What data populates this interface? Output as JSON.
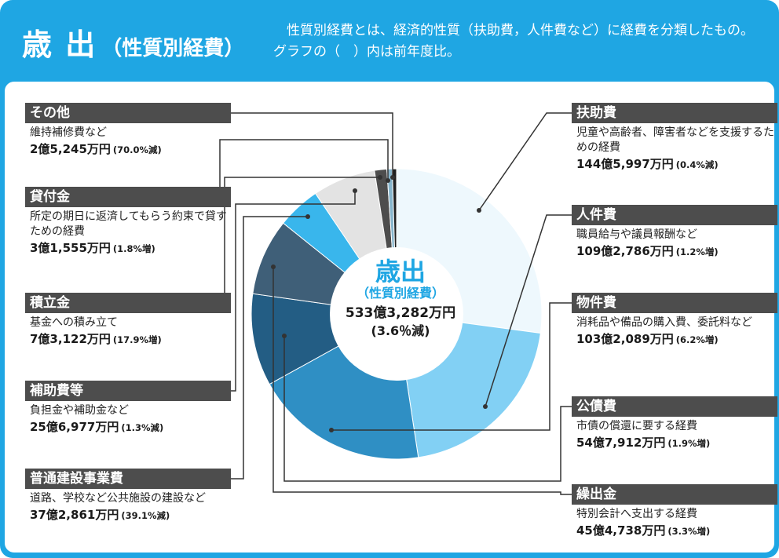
{
  "header": {
    "title": "歳 出",
    "subtitle": "（性質別経費）",
    "description": "性質別経費とは、経済的性質（扶助費，人件費など）に経費を分類したもの。グラフの（　）内は前年度比。"
  },
  "colors": {
    "brand": "#1fa6e3",
    "label_bar": "#4d4d4d",
    "leader_line": "#333333"
  },
  "center": {
    "title": "歳出",
    "subtitle": "（性質別経費）",
    "total": "533億3,282万円",
    "change": "(3.6％減)"
  },
  "chart_data": {
    "type": "pie",
    "unit": "万円",
    "categories": [
      "扶助費",
      "人件費",
      "物件費",
      "公債費",
      "繰出金",
      "補助費等",
      "普通建設事業費",
      "積立金",
      "貸付金",
      "その他"
    ],
    "values": [
      1445997,
      1092786,
      1032089,
      547912,
      454738,
      256977,
      372861,
      73122,
      31555,
      25245
    ],
    "colors": [
      "#eef8fd",
      "#82d0f4",
      "#2f8fc4",
      "#235d84",
      "#3f5f78",
      "#39b6ec",
      "#e3e3e3",
      "#4d4d4d",
      "#86b5cc",
      "#1f1f1f"
    ],
    "items": [
      {
        "name": "扶助費",
        "desc": "児童や高齢者、障害者などを支援するための経費",
        "amount": "144億5,997万円",
        "change": "(0.4%減)"
      },
      {
        "name": "人件費",
        "desc": "職員給与や議員報酬など",
        "amount": "109億2,786万円",
        "change": "(1.2%増)"
      },
      {
        "name": "物件費",
        "desc": "消耗品や備品の購入費、委託料など",
        "amount": "103億2,089万円",
        "change": "(6.2%増)"
      },
      {
        "name": "公債費",
        "desc": "市債の償還に要する経費",
        "amount": "54億7,912万円",
        "change": "(1.9%増)"
      },
      {
        "name": "繰出金",
        "desc": "特別会計へ支出する経費",
        "amount": "45億4,738万円",
        "change": "(3.3%増)"
      },
      {
        "name": "補助費等",
        "desc": "負担金や補助金など",
        "amount": "25億6,977万円",
        "change": "(1.3%減)"
      },
      {
        "name": "普通建設事業費",
        "desc": "道路、学校など公共施設の建設など",
        "amount": "37億2,861万円",
        "change": "(39.1%減)"
      },
      {
        "name": "積立金",
        "desc": "基金への積み立て",
        "amount": "7億3,122万円",
        "change": "(17.9%増)"
      },
      {
        "name": "貸付金",
        "desc": "所定の期日に返済してもらう約束で貸すための経費",
        "amount": "3億1,555万円",
        "change": "(1.8%増)"
      },
      {
        "name": "その他",
        "desc": "維持補修費など",
        "amount": "2億5,245万円",
        "change": "(70.0%減)"
      }
    ]
  }
}
